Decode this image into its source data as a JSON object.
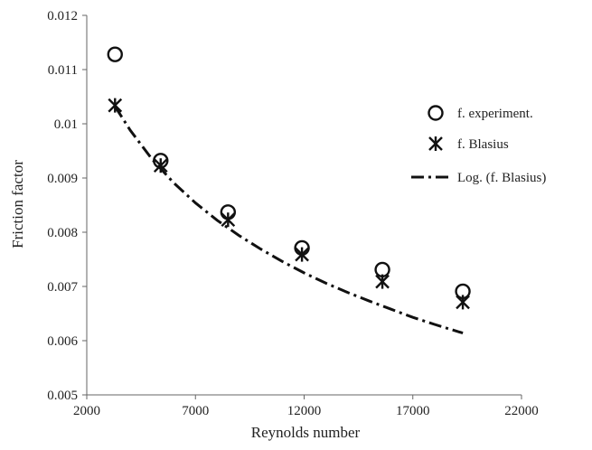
{
  "chart_data": {
    "type": "scatter",
    "xlabel": "Reynolds number",
    "ylabel": "Friction factor",
    "xlim": [
      2000,
      22000
    ],
    "ylim": [
      0.005,
      0.012
    ],
    "x_ticks": [
      2000,
      7000,
      12000,
      17000,
      22000
    ],
    "x_tick_labels": [
      "2000",
      "7000",
      "12000",
      "17000",
      "22000"
    ],
    "y_ticks": [
      0.005,
      0.006,
      0.007,
      0.008,
      0.009,
      0.01,
      0.011,
      0.012
    ],
    "y_tick_labels": [
      "0.005",
      "0.006",
      "0.007",
      "0.008",
      "0.009",
      "0.01",
      "0.011",
      "0.012"
    ],
    "grid": false,
    "legend_position": "right",
    "series": [
      {
        "name": "f. experiment.",
        "marker": "circle",
        "x": [
          3300,
          5400,
          8500,
          11900,
          15600,
          19300
        ],
        "y": [
          0.01128,
          0.00932,
          0.00837,
          0.00771,
          0.00731,
          0.00691
        ]
      },
      {
        "name": "f. Blasius",
        "marker": "asterisk",
        "x": [
          3300,
          5400,
          8500,
          11900,
          15600,
          19300
        ],
        "y": [
          0.01034,
          0.00923,
          0.00823,
          0.00759,
          0.00709,
          0.00671
        ]
      },
      {
        "name": "Log. (f. Blasius)",
        "style": "dash-dot",
        "fit_of": "f. Blasius",
        "x": [
          3300,
          4000,
          5000,
          6000,
          7000,
          8000,
          9000,
          10000,
          11000,
          12000,
          13000,
          14000,
          15000,
          16000,
          17000,
          18000,
          19300
        ],
        "y": [
          0.01032,
          0.00988,
          0.00935,
          0.00891,
          0.00854,
          0.00822,
          0.00794,
          0.00769,
          0.00746,
          0.00725,
          0.00706,
          0.00689,
          0.00673,
          0.00658,
          0.00643,
          0.0063,
          0.00614
        ]
      }
    ]
  }
}
